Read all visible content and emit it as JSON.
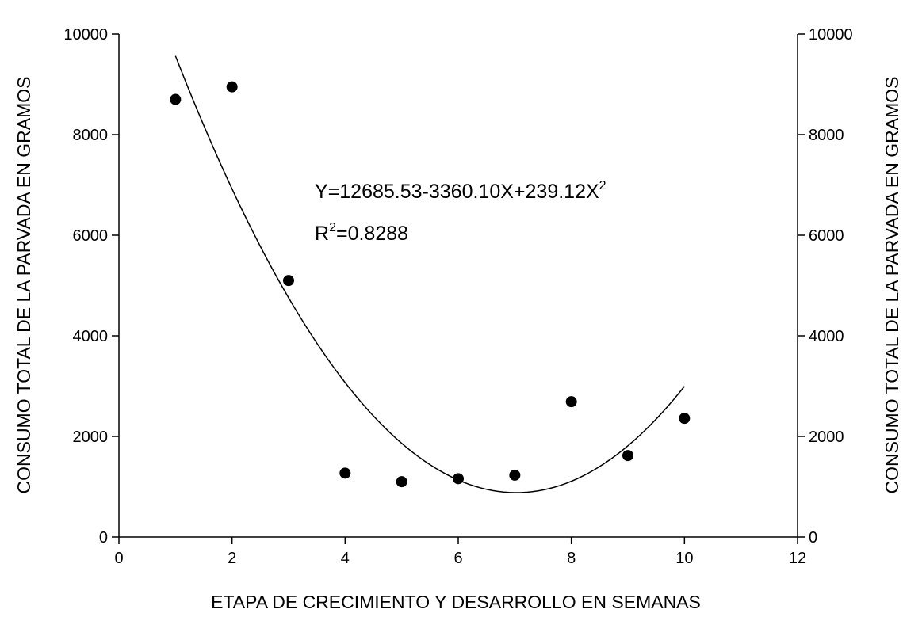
{
  "chart_data": {
    "type": "scatter",
    "title": "",
    "xlabel": "ETAPA DE CRECIMIENTO Y DESARROLLO EN SEMANAS",
    "ylabel": "CONSUMO TOTAL DE LA PARVADA EN GRAMOS",
    "ylabel_right": "CONSUMO TOTAL DE LA PARVADA EN GRAMOS",
    "xlim": [
      0,
      12
    ],
    "ylim": [
      0,
      10000
    ],
    "x_ticks": [
      0,
      2,
      4,
      6,
      8,
      10,
      12
    ],
    "x_tick_labels": [
      "0",
      "2",
      "4",
      "6",
      "8",
      "10",
      "12"
    ],
    "y_ticks": [
      0,
      2000,
      4000,
      6000,
      8000,
      10000
    ],
    "y_tick_labels": [
      "0",
      "2000",
      "4000",
      "6000",
      "8000",
      "10000"
    ],
    "grid": false,
    "legend": "none",
    "series": [
      {
        "type": "scatter",
        "x": [
          1,
          2,
          3,
          4,
          5,
          6,
          7,
          8,
          9,
          10
        ],
        "y": [
          8700,
          8950,
          5100,
          1270,
          1100,
          1160,
          1230,
          2690,
          1620,
          2360
        ],
        "color": "#000000"
      }
    ],
    "fit": {
      "type": "quadratic",
      "coefficients": [
        12685.53,
        -3360.1,
        239.12
      ],
      "x_range": [
        1,
        10
      ],
      "color": "#000000"
    },
    "annotations": [
      {
        "main": "Y=12685.53-3360.10X+239.12X",
        "sup": "2"
      },
      {
        "pre": "R",
        "sup": "2",
        "main": "=0.8288"
      }
    ]
  }
}
